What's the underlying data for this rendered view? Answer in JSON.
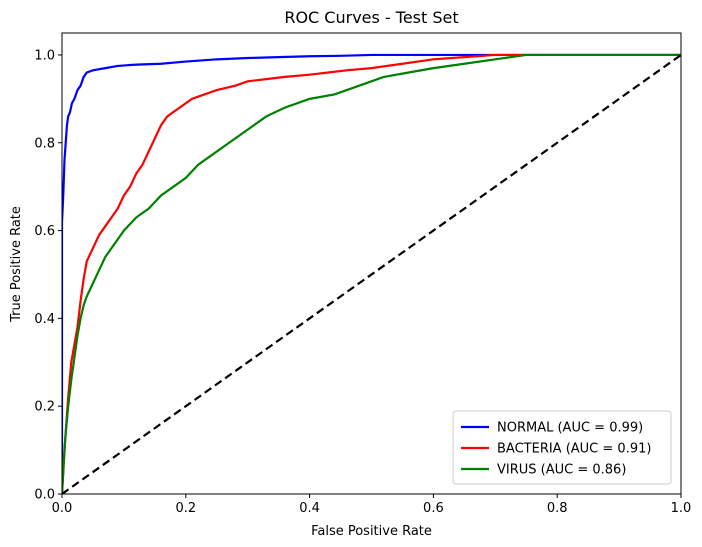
{
  "chart_data": {
    "type": "line",
    "title": "ROC Curves - Test Set",
    "xlabel": "False Positive Rate",
    "ylabel": "True Positive Rate",
    "xlim": [
      0.0,
      1.0
    ],
    "ylim": [
      0.0,
      1.05
    ],
    "x_ticks": [
      "0.0",
      "0.2",
      "0.4",
      "0.6",
      "0.8",
      "1.0"
    ],
    "y_ticks": [
      "0.0",
      "0.2",
      "0.4",
      "0.6",
      "0.8",
      "1.0"
    ],
    "grid": false,
    "legend_position": "bottom-right",
    "series": [
      {
        "name": "NORMAL (AUC = 0.99)",
        "color": "#0000ff",
        "x": [
          0.0,
          0.0,
          0.002,
          0.004,
          0.006,
          0.008,
          0.01,
          0.013,
          0.016,
          0.02,
          0.025,
          0.03,
          0.035,
          0.04,
          0.05,
          0.07,
          0.09,
          0.12,
          0.16,
          0.2,
          0.25,
          0.3,
          0.35,
          0.4,
          0.45,
          0.5,
          0.6,
          0.7,
          0.8,
          0.9,
          1.0
        ],
        "y": [
          0.0,
          0.62,
          0.68,
          0.76,
          0.8,
          0.84,
          0.86,
          0.87,
          0.89,
          0.9,
          0.92,
          0.93,
          0.95,
          0.96,
          0.965,
          0.97,
          0.975,
          0.978,
          0.98,
          0.985,
          0.99,
          0.993,
          0.995,
          0.997,
          0.998,
          1.0,
          1.0,
          1.0,
          1.0,
          1.0,
          1.0
        ]
      },
      {
        "name": "BACTERIA (AUC = 0.91)",
        "color": "#ff0000",
        "x": [
          0.0,
          0.005,
          0.01,
          0.015,
          0.02,
          0.025,
          0.03,
          0.035,
          0.04,
          0.05,
          0.06,
          0.07,
          0.08,
          0.09,
          0.1,
          0.11,
          0.12,
          0.13,
          0.14,
          0.15,
          0.16,
          0.17,
          0.18,
          0.19,
          0.2,
          0.21,
          0.23,
          0.25,
          0.28,
          0.3,
          0.33,
          0.36,
          0.4,
          0.43,
          0.46,
          0.5,
          0.55,
          0.6,
          0.65,
          0.7,
          0.75,
          0.8,
          0.9,
          1.0
        ],
        "y": [
          0.0,
          0.12,
          0.22,
          0.3,
          0.34,
          0.38,
          0.44,
          0.49,
          0.53,
          0.56,
          0.59,
          0.61,
          0.63,
          0.65,
          0.68,
          0.7,
          0.73,
          0.75,
          0.78,
          0.81,
          0.84,
          0.86,
          0.87,
          0.88,
          0.89,
          0.9,
          0.91,
          0.92,
          0.93,
          0.94,
          0.945,
          0.95,
          0.955,
          0.96,
          0.965,
          0.97,
          0.98,
          0.99,
          0.995,
          1.0,
          1.0,
          1.0,
          1.0,
          1.0
        ]
      },
      {
        "name": "VIRUS (AUC = 0.86)",
        "color": "#008000",
        "x": [
          0.0,
          0.003,
          0.006,
          0.01,
          0.015,
          0.02,
          0.025,
          0.03,
          0.035,
          0.04,
          0.05,
          0.06,
          0.07,
          0.08,
          0.09,
          0.1,
          0.12,
          0.14,
          0.16,
          0.18,
          0.2,
          0.22,
          0.24,
          0.26,
          0.28,
          0.3,
          0.33,
          0.36,
          0.4,
          0.44,
          0.48,
          0.52,
          0.56,
          0.6,
          0.65,
          0.7,
          0.75,
          0.8,
          0.9,
          1.0
        ],
        "y": [
          0.0,
          0.08,
          0.14,
          0.2,
          0.26,
          0.31,
          0.36,
          0.4,
          0.43,
          0.45,
          0.48,
          0.51,
          0.54,
          0.56,
          0.58,
          0.6,
          0.63,
          0.65,
          0.68,
          0.7,
          0.72,
          0.75,
          0.77,
          0.79,
          0.81,
          0.83,
          0.86,
          0.88,
          0.9,
          0.91,
          0.93,
          0.95,
          0.96,
          0.97,
          0.98,
          0.99,
          1.0,
          1.0,
          1.0,
          1.0
        ]
      },
      {
        "name": "",
        "color": "#000000",
        "dashed": true,
        "x": [
          0.0,
          1.0
        ],
        "y": [
          0.0,
          1.0
        ]
      }
    ]
  }
}
